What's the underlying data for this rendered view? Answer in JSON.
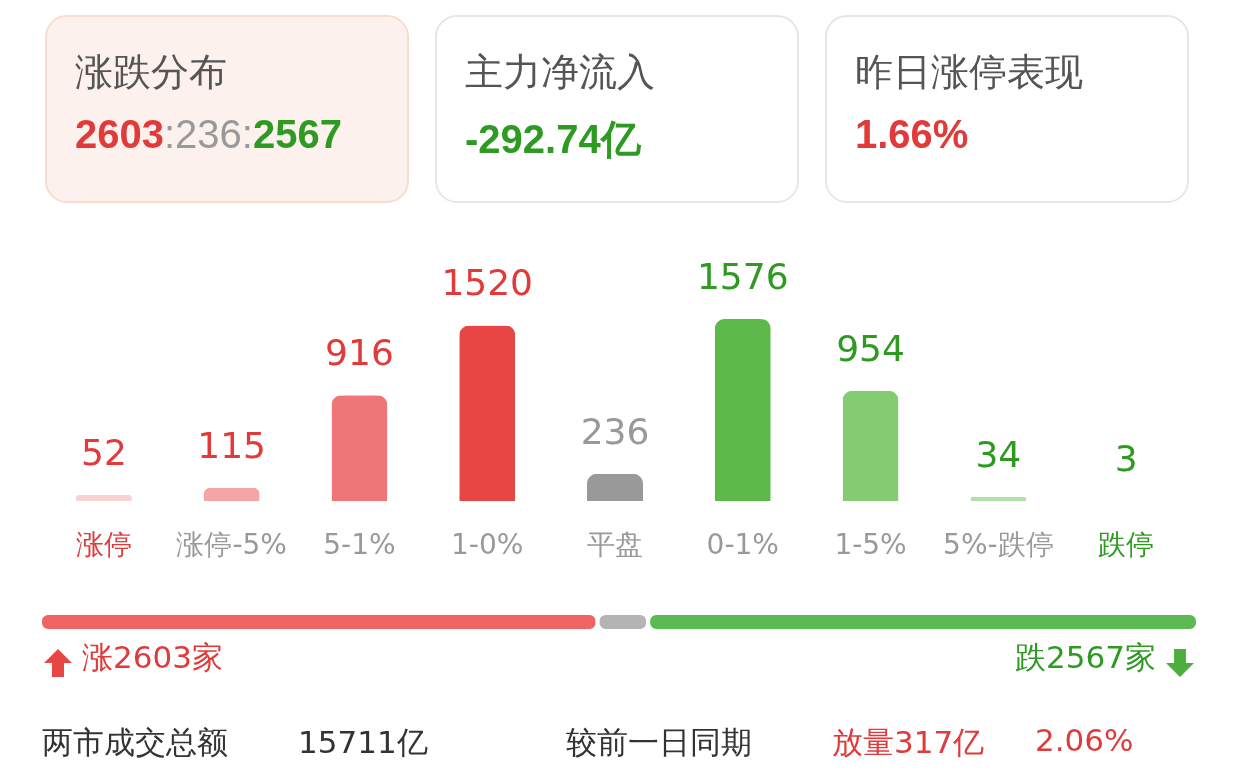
{
  "chart_data": [
    {
      "type": "other",
      "title": "涨跌分布",
      "annotations": [
        "2603",
        ":236:",
        "2567"
      ],
      "colors": [
        "#e03a3a",
        "#999999",
        "#2e9a22"
      ]
    },
    {
      "type": "other",
      "title": "主力净流入",
      "annotations": [
        "-292.74亿"
      ],
      "colors": [
        "#2e9a22"
      ]
    },
    {
      "type": "other",
      "title": "昨日涨停表现",
      "annotations": [
        "1.66%"
      ],
      "colors": [
        "#e03a3a"
      ]
    },
    {
      "type": "bar",
      "categories": [
        "涨停",
        "涨停-5%",
        "5-1%",
        "1-0%",
        "平盘",
        "0-1%",
        "1-5%",
        "5%-跌停",
        "跌停"
      ],
      "values": [
        52,
        115,
        916,
        1520,
        236,
        1576,
        954,
        34,
        3
      ],
      "colors": [
        "#f9d3d3",
        "#f4a6a6",
        "#ef7676",
        "#e84545",
        "#999999",
        "#5db84a",
        "#83cc72",
        "#b2e0a8",
        "#d8f0d2"
      ],
      "data_labels": true
    },
    {
      "type": "bar",
      "orientation": "horizontal",
      "stacked": true,
      "categories": [
        null
      ],
      "series": [
        {
          "color": "#f06464",
          "values": [
            2603
          ],
          "value_labels": [
            "涨2603家"
          ]
        },
        {
          "color": "#b4b4b4",
          "values": [
            236
          ]
        },
        {
          "color": "#5dba52",
          "values": [
            2567
          ],
          "value_labels": [
            "跌2567家"
          ]
        }
      ],
      "annotations": [
        "两市成交总额",
        "15711亿",
        "较前一日同期",
        "放量317亿",
        "2.06%"
      ]
    }
  ]
}
